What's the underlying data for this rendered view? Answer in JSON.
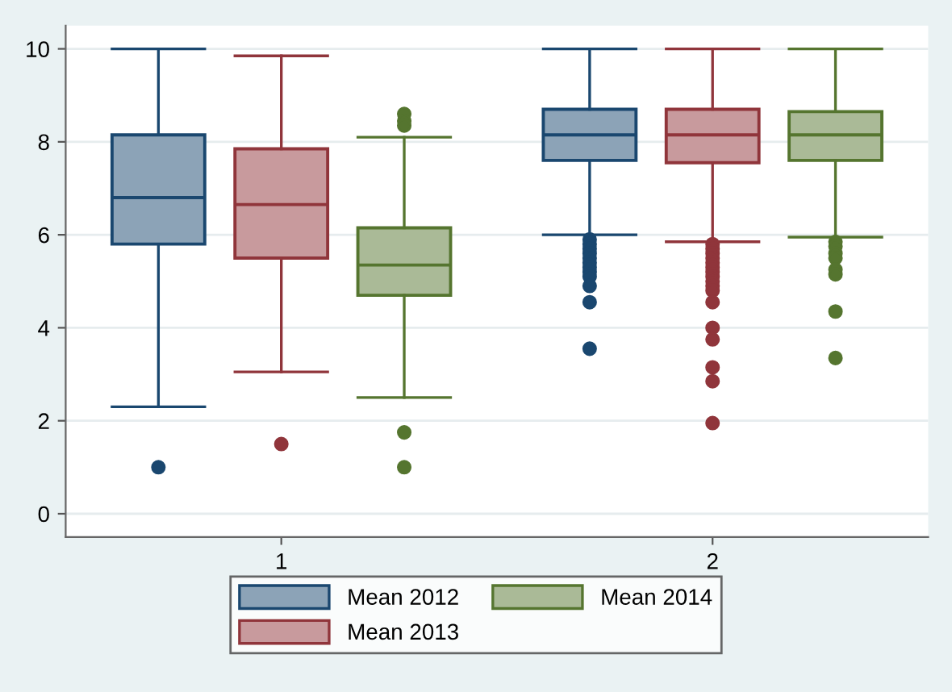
{
  "chart_data": {
    "type": "box",
    "categories": [
      "1",
      "2"
    ],
    "ylim": [
      -0.5,
      10.5
    ],
    "yticks": [
      0,
      2,
      4,
      6,
      8,
      10
    ],
    "grid": "y",
    "legend": "bottom",
    "marker": "circle",
    "series": [
      {
        "name": "Mean 2012",
        "color": "#1a476f",
        "boxes": [
          {
            "low": 2.3,
            "q1": 5.8,
            "median": 6.8,
            "q3": 8.15,
            "high": 10,
            "outliers": [
              1.0
            ]
          },
          {
            "low": 6.0,
            "q1": 7.6,
            "median": 8.15,
            "q3": 8.7,
            "high": 10,
            "outliers": [
              5.9,
              5.8,
              5.7,
              5.6,
              5.5,
              5.4,
              5.3,
              5.2,
              5.1,
              4.9,
              4.55,
              3.55
            ]
          }
        ]
      },
      {
        "name": "Mean 2013",
        "color": "#90353b",
        "boxes": [
          {
            "low": 3.05,
            "q1": 5.5,
            "median": 6.65,
            "q3": 7.85,
            "high": 9.85,
            "outliers": [
              1.5
            ]
          },
          {
            "low": 5.85,
            "q1": 7.55,
            "median": 8.15,
            "q3": 8.7,
            "high": 10,
            "outliers": [
              5.8,
              5.7,
              5.6,
              5.5,
              5.4,
              5.3,
              5.2,
              5.1,
              5.0,
              4.9,
              4.8,
              4.55,
              4.0,
              3.75,
              3.15,
              2.85,
              1.95
            ]
          }
        ]
      },
      {
        "name": "Mean 2014",
        "color": "#55752f",
        "boxes": [
          {
            "low": 2.5,
            "q1": 4.7,
            "median": 5.35,
            "q3": 6.15,
            "high": 8.1,
            "outliers": [
              8.6,
              8.45,
              8.35,
              1.75,
              1.0
            ]
          },
          {
            "low": 5.95,
            "q1": 7.6,
            "median": 8.15,
            "q3": 8.65,
            "high": 10,
            "outliers": [
              5.85,
              5.75,
              5.6,
              5.5,
              5.25,
              5.15,
              4.35,
              3.35
            ]
          }
        ]
      }
    ]
  }
}
